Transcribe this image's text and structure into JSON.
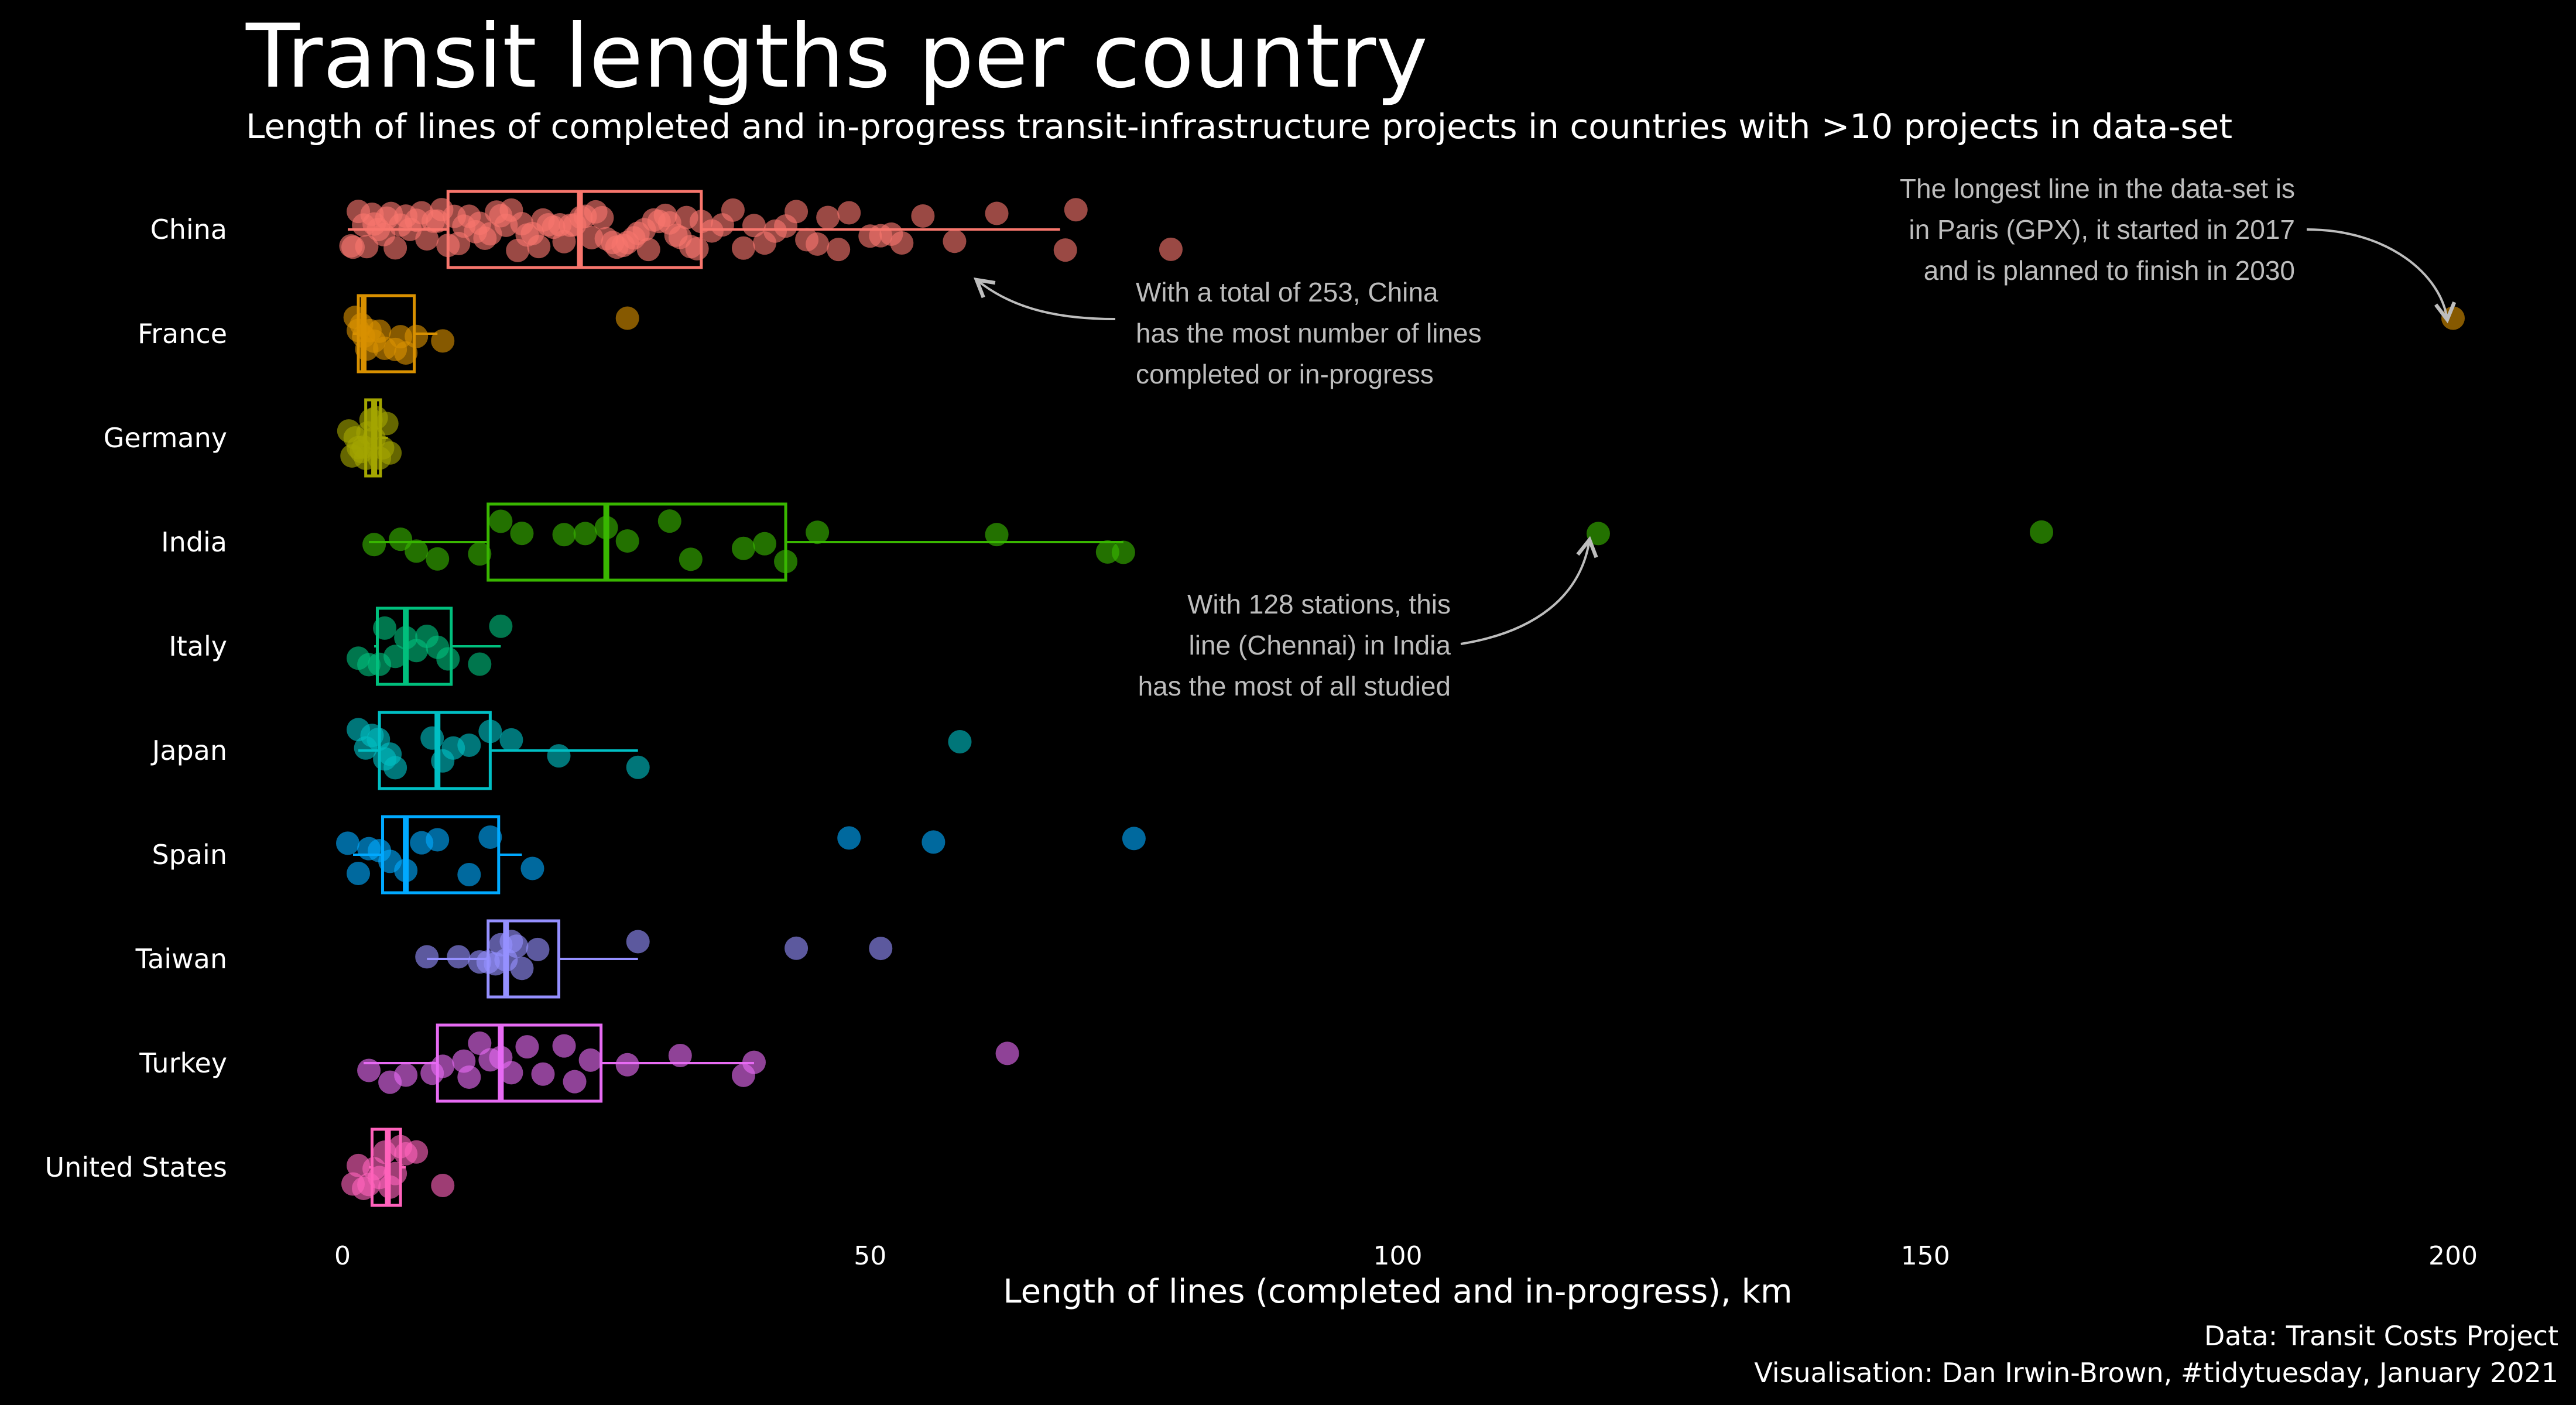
{
  "title": "Transit lengths per country",
  "subtitle": "Length of lines of completed and in-progress transit-infrastructure projects in countries with >10 projects in data-set",
  "caption": {
    "line1": "Data: Transit Costs Project",
    "line2": "Visualisation: Dan Irwin-Brown, #tidytuesday, January 2021"
  },
  "chart_data": {
    "type": "boxplot",
    "xlabel": "Length of lines (completed and in-progress), km",
    "ylabel": "",
    "xlim": [
      0,
      200
    ],
    "xticks": [
      0,
      50,
      100,
      150,
      200
    ],
    "grid": false,
    "legend": "none",
    "categories": [
      "China",
      "France",
      "Germany",
      "India",
      "Italy",
      "Japan",
      "Spain",
      "Taiwan",
      "Turkey",
      "United States"
    ],
    "series": [
      {
        "category": "China",
        "color": "#F8766D",
        "box": {
          "min": 0.5,
          "q1": 10,
          "median": 22.5,
          "q3": 34,
          "max": 68
        },
        "outliers": [],
        "points": [
          0.8,
          1,
          1.5,
          2,
          2.3,
          2.8,
          3,
          3.4,
          3.9,
          4.2,
          4.6,
          5,
          5.5,
          6,
          6.4,
          7,
          7.5,
          8,
          8.6,
          9,
          9.4,
          10,
          10.6,
          11,
          11.5,
          12,
          12.6,
          13,
          13.5,
          14,
          14.6,
          15,
          15.5,
          16,
          16.6,
          17,
          17.5,
          18,
          18.6,
          19,
          19.5,
          20,
          20.6,
          21,
          21.6,
          22,
          22.6,
          23,
          23.6,
          24,
          24.6,
          25,
          25.6,
          26,
          26.6,
          27,
          27.6,
          28,
          28.6,
          29,
          29.5,
          30,
          30.6,
          31,
          31.6,
          32,
          32.6,
          33,
          33.6,
          34,
          35,
          36,
          37,
          38,
          39,
          40,
          41,
          42,
          43,
          44,
          45,
          46,
          47,
          48,
          50,
          51,
          52,
          53,
          55,
          58,
          62,
          68.5,
          69.5,
          78.5
        ]
      },
      {
        "category": "France",
        "color": "#D89000",
        "box": {
          "min": 1,
          "q1": 1.5,
          "median": 2,
          "q3": 6.8,
          "max": 9
        },
        "outliers": [
          27,
          200
        ],
        "points": [
          1.2,
          1.5,
          1.8,
          2,
          2.3,
          2.6,
          3,
          3.5,
          4,
          5,
          5.5,
          6,
          7,
          9.5
        ]
      },
      {
        "category": "Germany",
        "color": "#A3A500",
        "box": {
          "min": 2,
          "q1": 2.2,
          "median": 3,
          "q3": 3.6,
          "max": 4.3
        },
        "outliers": [],
        "points": [
          0.6,
          0.9,
          1.2,
          1.5,
          1.8,
          2,
          2.2,
          2.4,
          2.7,
          3,
          3.2,
          3.5,
          3.8,
          4.2,
          4.5
        ]
      },
      {
        "category": "India",
        "color": "#39B600",
        "box": {
          "min": 2.5,
          "q1": 13.8,
          "median": 25,
          "q3": 42,
          "max": 74
        },
        "outliers": [
          119,
          161
        ],
        "points": [
          3,
          5.5,
          7,
          9,
          13,
          15,
          17,
          21,
          23,
          25,
          27,
          31,
          33,
          38,
          40,
          42,
          45,
          62,
          72.5,
          74
        ]
      },
      {
        "category": "Italy",
        "color": "#00BF7D",
        "box": {
          "min": 3,
          "q1": 3.3,
          "median": 6,
          "q3": 10.3,
          "max": 15
        },
        "outliers": [],
        "points": [
          1.5,
          2.5,
          3.5,
          4,
          5,
          6,
          7,
          8,
          9,
          10,
          13,
          15
        ]
      },
      {
        "category": "Japan",
        "color": "#00BFC4",
        "box": {
          "min": 1.5,
          "q1": 3.5,
          "median": 9,
          "q3": 14,
          "max": 28
        },
        "outliers": [
          58.5
        ],
        "points": [
          1.5,
          2.2,
          2.8,
          3.4,
          4,
          4.5,
          5,
          8.5,
          9.5,
          10.5,
          12,
          14,
          16,
          20.5,
          28
        ]
      },
      {
        "category": "Spain",
        "color": "#00A9FF",
        "box": {
          "min": 1,
          "q1": 3.8,
          "median": 6,
          "q3": 14.8,
          "max": 17
        },
        "outliers": [
          48,
          56,
          75
        ],
        "points": [
          0.5,
          1.5,
          2.5,
          3.5,
          4.5,
          6,
          7.5,
          9,
          12,
          14,
          18
        ]
      },
      {
        "category": "Taiwan",
        "color": "#9590FF",
        "box": {
          "min": 8,
          "q1": 13.8,
          "median": 15.5,
          "q3": 20.5,
          "max": 28
        },
        "outliers": [
          43,
          51
        ],
        "points": [
          8,
          11,
          13,
          13.8,
          14.5,
          15,
          15.5,
          16,
          16.5,
          17,
          18.5,
          28
        ]
      },
      {
        "category": "Turkey",
        "color": "#E76BF3",
        "box": {
          "min": 2,
          "q1": 9,
          "median": 15,
          "q3": 24.5,
          "max": 39
        },
        "outliers": [
          63
        ],
        "points": [
          2.5,
          4.5,
          6,
          8.5,
          9.5,
          11.5,
          12,
          13,
          14,
          15,
          16,
          17.5,
          19,
          21,
          22,
          23.5,
          27,
          32,
          38,
          39
        ]
      },
      {
        "category": "United States",
        "color": "#FF62BC",
        "box": {
          "min": 2.5,
          "q1": 2.8,
          "median": 4.3,
          "q3": 5.5,
          "max": 6
        },
        "outliers": [],
        "points": [
          1,
          1.5,
          2,
          2.5,
          3,
          3.5,
          4,
          4.5,
          5,
          5.5,
          6,
          7,
          9.5
        ]
      }
    ],
    "annotations": [
      {
        "lines": [
          "The longest line in the data-set is",
          "in Paris (GPX), it started in 2017",
          "and is planned to finish in 2030"
        ]
      },
      {
        "lines": [
          "With a total of 253, China",
          "has the most number of lines",
          "completed or in-progress"
        ]
      },
      {
        "lines": [
          "With 128 stations, this",
          "line (Chennai) in India",
          "has the most of all studied"
        ]
      }
    ]
  }
}
